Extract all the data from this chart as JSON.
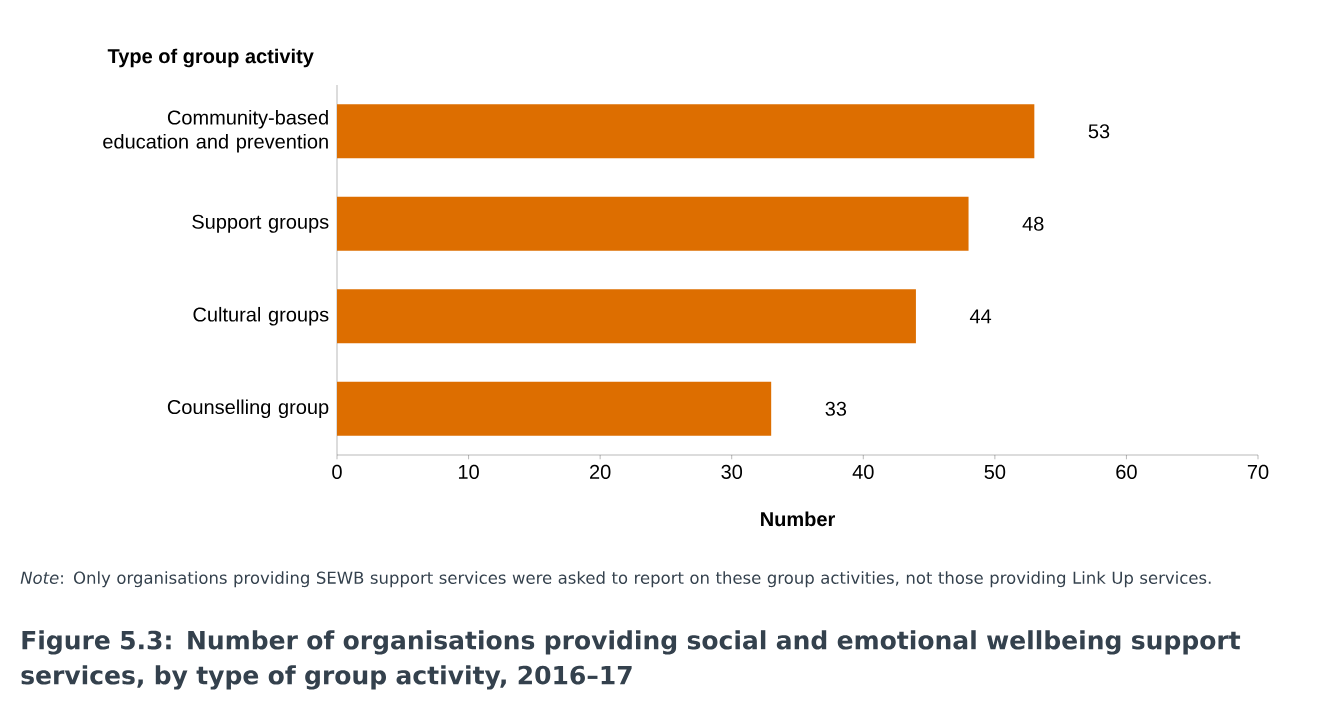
{
  "chart_data": {
    "type": "bar",
    "orientation": "horizontal",
    "title": "Figure 5.3: Number of organisations providing social and emotional wellbeing support services, by type of group activity, 2016–17",
    "ylabel": "Type of group activity",
    "xlabel": "Number",
    "annotations": [
      "*Note*: Only organisations providing SEWB support services were asked to report on these group activities, not those providing Link Up services."
    ],
    "categories": [
      "Community-based education and prevention",
      "Support groups",
      "Cultural groups",
      "Counselling group"
    ],
    "values": [
      53,
      48,
      44,
      33
    ],
    "color": "#dd6e00",
    "xlim": [
      0,
      70
    ],
    "xticks": [
      0,
      10,
      20,
      30,
      40,
      50,
      60,
      70
    ],
    "data_labels": true
  }
}
